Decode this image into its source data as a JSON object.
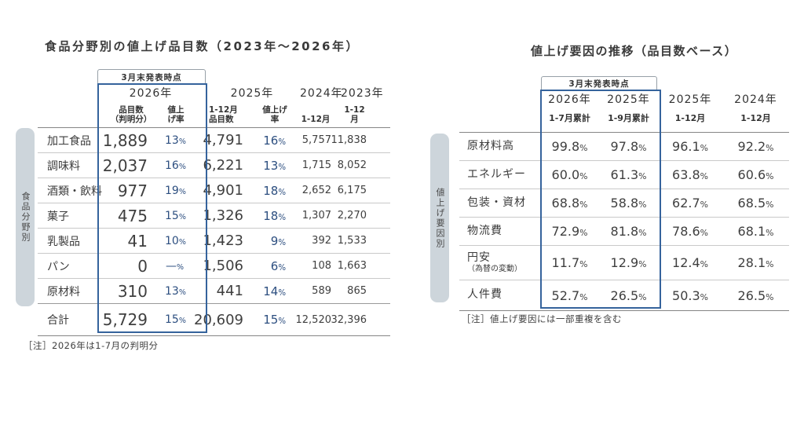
{
  "colors": {
    "accent_border_blue": "#35639c",
    "percent_text_navy": "#2d4f80",
    "sidebar_gray": "#cdd5db",
    "rule_dark": "#858585",
    "rule_light": "#c9c9c9",
    "text_dark": "#3c3c3c"
  },
  "chart_data": [
    {
      "type": "table",
      "title": "食品分野別の値上げ品目数（2023年～2026年）",
      "annotation_badge": "3月末発表時点",
      "side_label": "食品分野別",
      "note": "［注］2026年は1-7月の判明分",
      "column_groups": [
        {
          "label": "2026年",
          "cols": [
            "品目数\n（判明分）",
            "値上げ率"
          ]
        },
        {
          "label": "2025年",
          "cols": [
            "1-12月\n品目数",
            "値上げ率"
          ]
        },
        {
          "label": "2024年",
          "cols": [
            "1-12月"
          ]
        },
        {
          "label": "2023年",
          "cols": [
            "1-12月"
          ]
        }
      ],
      "categories": [
        "加工食品",
        "調味料",
        "酒類・飲料",
        "菓子",
        "乳製品",
        "パン",
        "原材料"
      ],
      "rows": [
        [
          "1,889",
          "13%",
          "4,791",
          "16%",
          "5,757",
          "11,838"
        ],
        [
          "2,037",
          "16%",
          "6,221",
          "13%",
          "1,715",
          "8,052"
        ],
        [
          "977",
          "19%",
          "4,901",
          "18%",
          "2,652",
          "6,175"
        ],
        [
          "475",
          "15%",
          "1,326",
          "18%",
          "1,307",
          "2,270"
        ],
        [
          "41",
          "10%",
          "1,423",
          "9%",
          "392",
          "1,533"
        ],
        [
          "0",
          "—%",
          "1,506",
          "6%",
          "108",
          "1,663"
        ],
        [
          "310",
          "13%",
          "441",
          "14%",
          "589",
          "865"
        ]
      ],
      "total_label": "合計",
      "total_row": [
        "5,729",
        "15%",
        "20,609",
        "15%",
        "12,520",
        "32,396"
      ]
    },
    {
      "type": "table",
      "title": "値上げ要因の推移（品目数ベース）",
      "annotation_badge": "3月末発表時点",
      "side_label": "値上げ要因別",
      "note": "［注］値上げ要因には一部重複を含む",
      "columns": [
        {
          "year": "2026年",
          "period": "1-7月累計"
        },
        {
          "year": "2025年",
          "period": "1-9月累計"
        },
        {
          "year": "2025年",
          "period": "1-12月"
        },
        {
          "year": "2024年",
          "period": "1-12月"
        }
      ],
      "categories": [
        {
          "label": "原材料高"
        },
        {
          "label": "エネルギー"
        },
        {
          "label": "包装・資材"
        },
        {
          "label": "物流費"
        },
        {
          "label": "円安",
          "sub": "（為替の変動）"
        },
        {
          "label": "人件費"
        }
      ],
      "rows": [
        [
          "99.8%",
          "97.8%",
          "96.1%",
          "92.2%"
        ],
        [
          "60.0%",
          "61.3%",
          "63.8%",
          "60.6%"
        ],
        [
          "68.8%",
          "58.8%",
          "62.7%",
          "68.5%"
        ],
        [
          "72.9%",
          "81.8%",
          "78.6%",
          "68.1%"
        ],
        [
          "11.7%",
          "12.9%",
          "12.4%",
          "28.1%"
        ],
        [
          "52.7%",
          "26.5%",
          "50.3%",
          "26.5%"
        ]
      ]
    }
  ]
}
